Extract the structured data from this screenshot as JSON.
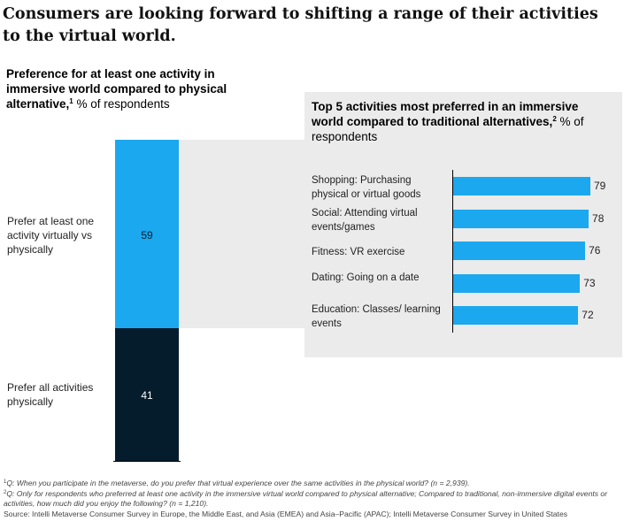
{
  "headline": "Consumers are looking forward to shifting a range of their activities to the virtual world.",
  "chart_data": [
    {
      "type": "bar",
      "title": "Preference for at least one activity in immersive world compared to physical alternative,",
      "title_sup": "1",
      "unit": "% of respondents",
      "stacked": true,
      "categories": [
        "Prefer at least one activity virtually vs physically",
        "Prefer all activities physically"
      ],
      "values": [
        59,
        41
      ],
      "colors": [
        "#1ba8ef",
        "#051c2c"
      ]
    },
    {
      "type": "bar",
      "orientation": "horizontal",
      "title": "Top 5 activities most preferred in an immersive world compared to traditional alternatives,",
      "title_sup": "2",
      "unit": "% of respondents",
      "categories": [
        "Shopping: Purchasing physical or virtual goods",
        "Social: Attending virtual events/games",
        "Fitness: VR exercise",
        "Dating: Going on a date",
        "Education: Classes/ learning events"
      ],
      "values": [
        79,
        78,
        76,
        73,
        72
      ],
      "color": "#1ba8ef"
    }
  ],
  "footnotes": {
    "note1_num": "1",
    "note1": "Q: When you participate in the metaverse, do you prefer that virtual experience over the same activities in the physical world? (n = 2,939).",
    "note2_num": "2",
    "note2": "Q: Only for respondents who preferred at least one activity in the immersive virtual world compared to physical alternative; Compared to traditional, non-immersive digital events or activities, how much did you enjoy the following? (n = 1,210).",
    "source": "Source: Intelli Metaverse Consumer Survey in Europe, the Middle East, and Asia (EMEA) and Asia–Pacific (APAC); Intelli Metaverse Consumer Survey in United States"
  }
}
